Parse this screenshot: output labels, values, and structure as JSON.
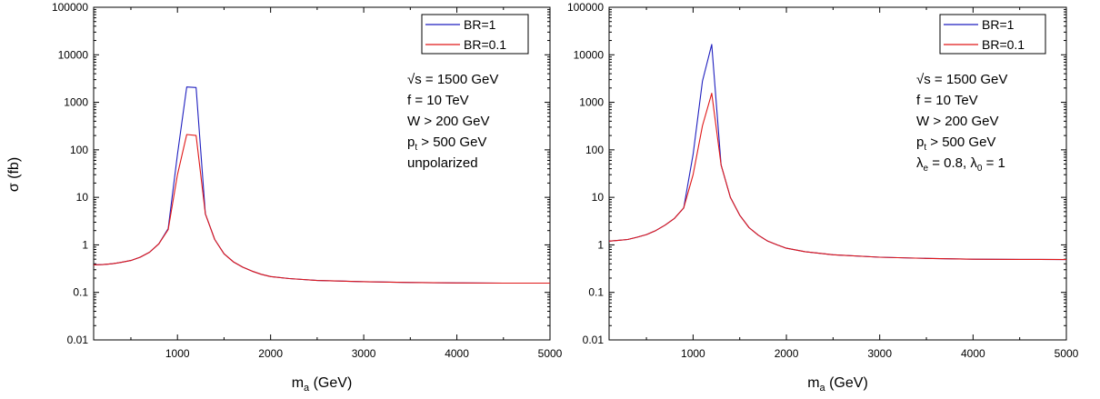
{
  "ylabel": "σ (fb)",
  "chart_data": [
    {
      "type": "line",
      "xlabel": "m_a (GeV)",
      "x_tick_labels": [
        "1000",
        "2000",
        "3000",
        "4000",
        "5000"
      ],
      "y_tick_labels": [
        "0.01",
        "0.1",
        "1",
        "10",
        "100",
        "1000",
        "10000",
        "100000"
      ],
      "xlim": [
        100,
        5000
      ],
      "ylim": [
        0.01,
        100000
      ],
      "yscale": "log",
      "grid": false,
      "legend_position": "top-right",
      "annotations": [
        {
          "base": "√s = 1500 GeV"
        },
        {
          "base": "f = 10 TeV"
        },
        {
          "base": "W > 200 GeV"
        },
        {
          "base": "p",
          "sub": "t",
          "rest": " > 500 GeV"
        },
        {
          "base": "unpolarized"
        }
      ],
      "series": [
        {
          "name": "BR=1",
          "color": "#1f1fbf",
          "points": [
            [
              100,
              0.38
            ],
            [
              200,
              0.385
            ],
            [
              300,
              0.4
            ],
            [
              400,
              0.43
            ],
            [
              500,
              0.47
            ],
            [
              600,
              0.55
            ],
            [
              700,
              0.7
            ],
            [
              800,
              1.05
            ],
            [
              900,
              2.2
            ],
            [
              1000,
              80
            ],
            [
              1100,
              2100
            ],
            [
              1200,
              2050
            ],
            [
              1300,
              4.5
            ],
            [
              1400,
              1.3
            ],
            [
              1500,
              0.65
            ],
            [
              1600,
              0.44
            ],
            [
              1700,
              0.34
            ],
            [
              1800,
              0.28
            ],
            [
              1900,
              0.24
            ],
            [
              2000,
              0.215
            ],
            [
              2200,
              0.195
            ],
            [
              2500,
              0.178
            ],
            [
              3000,
              0.168
            ],
            [
              3500,
              0.162
            ],
            [
              4000,
              0.158
            ],
            [
              4500,
              0.157
            ],
            [
              5000,
              0.157
            ]
          ]
        },
        {
          "name": "BR=0.1",
          "color": "#e01818",
          "points": [
            [
              100,
              0.38
            ],
            [
              200,
              0.385
            ],
            [
              300,
              0.4
            ],
            [
              400,
              0.43
            ],
            [
              500,
              0.47
            ],
            [
              600,
              0.55
            ],
            [
              700,
              0.7
            ],
            [
              800,
              1.05
            ],
            [
              900,
              2.1
            ],
            [
              1000,
              30
            ],
            [
              1100,
              210
            ],
            [
              1200,
              200
            ],
            [
              1300,
              4.5
            ],
            [
              1400,
              1.3
            ],
            [
              1500,
              0.65
            ],
            [
              1600,
              0.44
            ],
            [
              1700,
              0.34
            ],
            [
              1800,
              0.28
            ],
            [
              1900,
              0.24
            ],
            [
              2000,
              0.215
            ],
            [
              2200,
              0.195
            ],
            [
              2500,
              0.178
            ],
            [
              3000,
              0.168
            ],
            [
              3500,
              0.162
            ],
            [
              4000,
              0.158
            ],
            [
              4500,
              0.157
            ],
            [
              5000,
              0.157
            ]
          ]
        }
      ]
    },
    {
      "type": "line",
      "xlabel": "m_a (GeV)",
      "x_tick_labels": [
        "1000",
        "2000",
        "3000",
        "4000",
        "5000"
      ],
      "y_tick_labels": [
        "0.01",
        "0.1",
        "1",
        "10",
        "100",
        "1000",
        "10000",
        "100000"
      ],
      "xlim": [
        100,
        5000
      ],
      "ylim": [
        0.01,
        100000
      ],
      "yscale": "log",
      "grid": false,
      "legend_position": "top-right",
      "annotations": [
        {
          "base": "√s = 1500 GeV"
        },
        {
          "base": "f = 10 TeV"
        },
        {
          "base": "W > 200 GeV"
        },
        {
          "base": "p",
          "sub": "t",
          "rest": " > 500 GeV"
        },
        {
          "base": "λ",
          "sub": "e",
          "rest": " =  0.8,  λ",
          "sub2": "0",
          "rest2": " = 1"
        }
      ],
      "series": [
        {
          "name": "BR=1",
          "color": "#1f1fbf",
          "points": [
            [
              100,
              1.2
            ],
            [
              200,
              1.25
            ],
            [
              300,
              1.3
            ],
            [
              400,
              1.45
            ],
            [
              500,
              1.65
            ],
            [
              600,
              2.0
            ],
            [
              700,
              2.6
            ],
            [
              800,
              3.6
            ],
            [
              900,
              6.0
            ],
            [
              1000,
              80
            ],
            [
              1100,
              2800
            ],
            [
              1200,
              16500
            ],
            [
              1300,
              48
            ],
            [
              1400,
              10
            ],
            [
              1500,
              4.2
            ],
            [
              1600,
              2.3
            ],
            [
              1700,
              1.6
            ],
            [
              1800,
              1.2
            ],
            [
              1900,
              1.0
            ],
            [
              2000,
              0.85
            ],
            [
              2200,
              0.72
            ],
            [
              2500,
              0.62
            ],
            [
              3000,
              0.55
            ],
            [
              3500,
              0.52
            ],
            [
              4000,
              0.5
            ],
            [
              4500,
              0.495
            ],
            [
              5000,
              0.49
            ]
          ]
        },
        {
          "name": "BR=0.1",
          "color": "#e01818",
          "points": [
            [
              100,
              1.2
            ],
            [
              200,
              1.25
            ],
            [
              300,
              1.3
            ],
            [
              400,
              1.45
            ],
            [
              500,
              1.65
            ],
            [
              600,
              2.0
            ],
            [
              700,
              2.6
            ],
            [
              800,
              3.6
            ],
            [
              900,
              6.0
            ],
            [
              1000,
              30
            ],
            [
              1100,
              320
            ],
            [
              1200,
              1550
            ],
            [
              1300,
              48
            ],
            [
              1400,
              10
            ],
            [
              1500,
              4.2
            ],
            [
              1600,
              2.3
            ],
            [
              1700,
              1.6
            ],
            [
              1800,
              1.2
            ],
            [
              1900,
              1.0
            ],
            [
              2000,
              0.85
            ],
            [
              2200,
              0.72
            ],
            [
              2500,
              0.62
            ],
            [
              3000,
              0.55
            ],
            [
              3500,
              0.52
            ],
            [
              4000,
              0.5
            ],
            [
              4500,
              0.495
            ],
            [
              5000,
              0.49
            ]
          ]
        }
      ]
    }
  ]
}
